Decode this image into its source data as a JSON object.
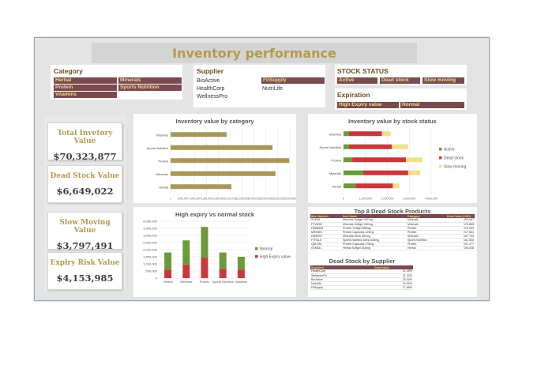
{
  "title": "Inventory performance",
  "slicers": {
    "category": {
      "title": "Category",
      "items": [
        "Herbal",
        "Minerals",
        "Protein",
        "Sports Nutrition",
        "Vitamins"
      ]
    },
    "supplier": {
      "title": "Supplier",
      "plain_items": [
        "BioActive",
        "HealthCorp",
        "WellnessPro",
        "NutriLife"
      ],
      "selected_items": [
        "FitSupply"
      ]
    },
    "stock_status": {
      "title": "STOCK STATUS",
      "items": [
        "Active",
        "Dead stock",
        "Slow moving"
      ]
    },
    "expiration": {
      "title": "Expiration",
      "items": [
        "High Expiry value",
        "Normal"
      ]
    }
  },
  "kpis": [
    {
      "label": "Total Invetory Value",
      "value": "$70,323,877"
    },
    {
      "label": "Dead Stock Value",
      "value": "$6,649,022"
    },
    {
      "label": "Slow Moving Value",
      "value": "$3,797,491"
    },
    {
      "label": "Expiry Risk Value",
      "value": "$4,153,985"
    }
  ],
  "colors": {
    "accent": "#b39a4c",
    "chip": "#7a4a4e",
    "chip_text": "#f2d98a",
    "bar_gold": "#a8975a",
    "active": "#6b9a3a",
    "dead": "#c9383a",
    "slow": "#f3df87"
  },
  "chart_data": [
    {
      "type": "bar",
      "title": "Inventory value by category",
      "orientation": "horizontal",
      "categories": [
        "Vitamins",
        "Sports Nutrition",
        "Protein",
        "Minerals",
        "Herbal"
      ],
      "values": [
        9400000,
        17100000,
        19900000,
        17600000,
        10200000
      ],
      "xlim": [
        0,
        20000000
      ],
      "ticks": [
        "0",
        "2,000,000",
        "4,000,000",
        "6,000,000",
        "8,000,000",
        "10,000,000",
        "12,000,000",
        "14,000,000",
        "16,000,000",
        "18,000,000",
        "20,000,000"
      ],
      "tick_labels_text": "0 2,000,0004,000,0006,000,0008,000,00010,000,00012,000,00014,000,00016,000,00018,000,00020,000,000"
    },
    {
      "type": "bar",
      "stacked": true,
      "orientation": "horizontal",
      "title": "Inventory value by stock status",
      "categories": [
        "Vitamins",
        "Sports Nutrition",
        "Protein",
        "Minerals",
        "Herbal"
      ],
      "series": [
        {
          "name": "Active",
          "values": [
            250000,
            250000,
            400000,
            900000,
            550000
          ]
        },
        {
          "name": "Dead stock",
          "values": [
            1500000,
            1950000,
            2450000,
            2050000,
            1700000
          ]
        },
        {
          "name": "Slow moving",
          "values": [
            400000,
            750000,
            750000,
            550000,
            300000
          ]
        }
      ],
      "xlim": [
        0,
        4000000
      ],
      "ticks": [
        "0",
        "1,000,000",
        "2,000,000",
        "3,000,000",
        "4,000,000"
      ]
    },
    {
      "type": "bar",
      "stacked": true,
      "title": "High expiry vs normal stock",
      "categories": [
        "Herbal",
        "Minerals",
        "Protein",
        "Sports Nutrition",
        "Vitamins"
      ],
      "series": [
        {
          "name": "Normal",
          "values": [
            1200000,
            1700000,
            2150000,
            1150000,
            900000
          ]
        },
        {
          "name": "High Expiry value",
          "values": [
            600000,
            950000,
            1450000,
            650000,
            600000
          ]
        }
      ],
      "ylim": [
        0,
        4000000
      ],
      "ticks": [
        "0",
        "500,000",
        "1,000,000",
        "1,500,000",
        "2,000,000",
        "2,500,000",
        "3,000,000",
        "3,500,000",
        "4,000,000"
      ]
    }
  ],
  "tables": {
    "top8": {
      "title": "Top 8 Dead Stock Products",
      "headers": [
        "Item Number",
        "Item Name",
        "Category",
        "Dead Value (USD)"
      ],
      "rows": [
        [
          "SUP56",
          "Minerals Softgel 407mg",
          "Minerals",
          "209,067"
        ],
        [
          "FTVM30",
          "Minerals Softgel 340mg",
          "Minerals",
          "176,865"
        ],
        [
          "HMNM98",
          "Protein Softgel 888mg",
          "Protein",
          "210,933"
        ],
        [
          "MRH3EL",
          "Protein Capsules 129mg",
          "Protein",
          "217,661"
        ],
        [
          "DN5R09",
          "Minerals Drink 551mg",
          "Minerals",
          "187,745"
        ],
        [
          "FTR3L5",
          "Sports Nutrition Drink 528mg",
          "Sports Nutrition",
          "181,508"
        ],
        [
          "QDL030",
          "Protein Capsules 176mg",
          "Protein",
          "201,177"
        ],
        [
          "KSM5L1",
          "Herbal Softgel 516mg",
          "Herbal",
          "196,528"
        ]
      ]
    },
    "supplier": {
      "title": "Dead Stock by Supplier",
      "headers": [
        "Suppliers",
        "Dead stock"
      ],
      "rows": [
        [
          "HealthCorp",
          "21.28%"
        ],
        [
          "WellnessPro",
          "21.20%"
        ],
        [
          "BioActive",
          "20.30%"
        ],
        [
          "NutriLife",
          "19.50%"
        ],
        [
          "FitSupply",
          "17.88%"
        ]
      ]
    }
  }
}
